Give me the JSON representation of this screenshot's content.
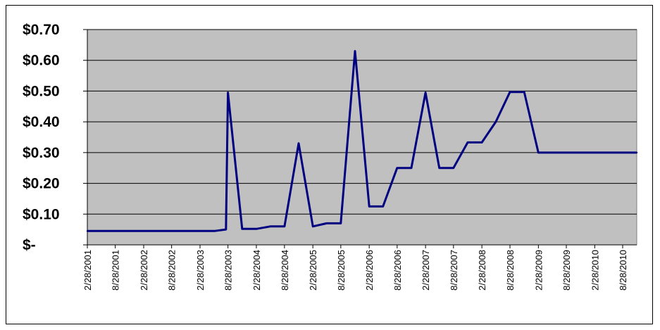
{
  "chart_data": {
    "type": "line",
    "title": "",
    "xlabel": "",
    "ylabel": "",
    "ylim": [
      0,
      0.7
    ],
    "yticks": [
      {
        "value": 0.7,
        "label": "$0.70"
      },
      {
        "value": 0.6,
        "label": "$0.60"
      },
      {
        "value": 0.5,
        "label": "$0.50"
      },
      {
        "value": 0.4,
        "label": "$0.40"
      },
      {
        "value": 0.3,
        "label": "$0.30"
      },
      {
        "value": 0.2,
        "label": "$0.20"
      },
      {
        "value": 0.1,
        "label": "$0.10"
      },
      {
        "value": 0.0,
        "label": "$-"
      }
    ],
    "xticks": [
      "2/28/2001",
      "8/28/2001",
      "2/28/2002",
      "8/28/2002",
      "2/28/2003",
      "8/28/2003",
      "2/28/2004",
      "8/28/2004",
      "2/28/2005",
      "8/28/2005",
      "2/28/2006",
      "8/28/2006",
      "2/28/2007",
      "8/28/2007",
      "2/28/2008",
      "8/28/2008",
      "2/28/2009",
      "8/28/2009",
      "2/28/2010",
      "8/28/2010"
    ],
    "xlim": [
      "2/28/2001",
      "8/28/2010"
    ],
    "grid": "horizontal",
    "plot_background": "#c0c0c0",
    "line_color": "#000080",
    "series": [
      {
        "x": [
          "2/28/2001",
          "8/28/2001",
          "2/28/2002",
          "8/28/2002",
          "2/28/2003",
          "6/1/2003",
          "8/15/2003",
          "8/28/2003",
          "11/28/2003",
          "2/28/2004",
          "5/28/2004",
          "8/28/2004",
          "11/28/2004",
          "2/28/2005",
          "5/28/2005",
          "8/28/2005",
          "11/28/2005",
          "2/28/2006",
          "5/28/2006",
          "8/28/2006",
          "11/28/2006",
          "2/28/2007",
          "5/28/2007",
          "8/28/2007",
          "11/28/2007",
          "2/28/2008",
          "5/28/2008",
          "8/28/2008",
          "11/28/2008",
          "2/28/2009",
          "8/28/2009",
          "2/28/2010",
          "8/28/2010",
          "11/28/2010"
        ],
        "values": [
          0.045,
          0.045,
          0.045,
          0.045,
          0.045,
          0.045,
          0.05,
          0.495,
          0.052,
          0.052,
          0.06,
          0.06,
          0.33,
          0.06,
          0.07,
          0.07,
          0.63,
          0.125,
          0.125,
          0.25,
          0.25,
          0.495,
          0.25,
          0.25,
          0.333,
          0.333,
          0.4,
          0.497,
          0.497,
          0.3,
          0.3,
          0.3,
          0.3,
          0.3
        ]
      }
    ]
  }
}
